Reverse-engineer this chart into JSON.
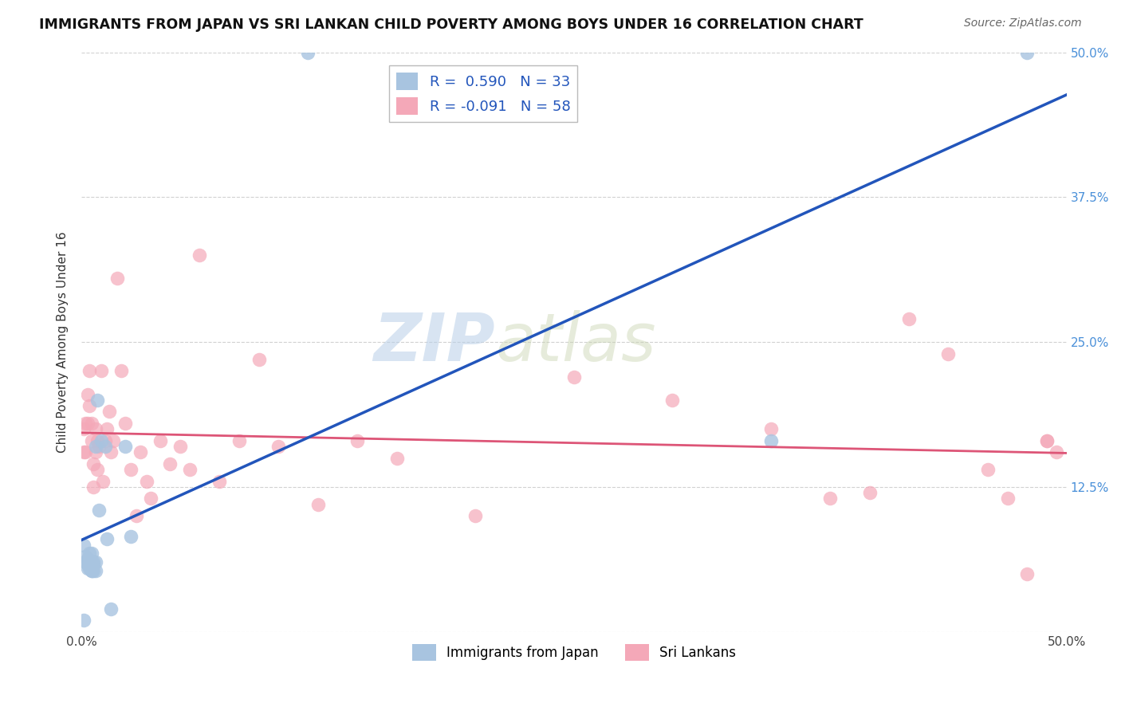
{
  "title": "IMMIGRANTS FROM JAPAN VS SRI LANKAN CHILD POVERTY AMONG BOYS UNDER 16 CORRELATION CHART",
  "source": "Source: ZipAtlas.com",
  "ylabel": "Child Poverty Among Boys Under 16",
  "xlim": [
    0.0,
    0.5
  ],
  "ylim": [
    0.0,
    0.5
  ],
  "R_japan": 0.59,
  "N_japan": 33,
  "R_srilanka": -0.091,
  "N_srilanka": 58,
  "color_japan": "#a8c4e0",
  "color_srilanka": "#f4a8b8",
  "line_color_japan": "#2255bb",
  "line_color_srilanka": "#dd5577",
  "background_color": "#ffffff",
  "grid_color": "#cccccc",
  "japan_x": [
    0.001,
    0.002,
    0.002,
    0.003,
    0.003,
    0.003,
    0.004,
    0.004,
    0.004,
    0.004,
    0.005,
    0.005,
    0.005,
    0.005,
    0.005,
    0.006,
    0.006,
    0.006,
    0.007,
    0.007,
    0.007,
    0.008,
    0.009,
    0.01,
    0.012,
    0.013,
    0.015,
    0.022,
    0.025,
    0.115,
    0.35,
    0.48,
    0.001
  ],
  "japan_y": [
    0.075,
    0.06,
    0.065,
    0.058,
    0.055,
    0.063,
    0.055,
    0.06,
    0.058,
    0.068,
    0.053,
    0.058,
    0.06,
    0.053,
    0.068,
    0.053,
    0.058,
    0.06,
    0.053,
    0.06,
    0.16,
    0.2,
    0.105,
    0.165,
    0.16,
    0.08,
    0.02,
    0.16,
    0.082,
    0.5,
    0.165,
    0.5,
    0.01
  ],
  "srilanka_x": [
    0.001,
    0.001,
    0.002,
    0.002,
    0.003,
    0.003,
    0.004,
    0.004,
    0.005,
    0.005,
    0.006,
    0.006,
    0.007,
    0.007,
    0.008,
    0.008,
    0.009,
    0.01,
    0.011,
    0.012,
    0.013,
    0.014,
    0.015,
    0.016,
    0.018,
    0.02,
    0.022,
    0.025,
    0.028,
    0.03,
    0.033,
    0.035,
    0.04,
    0.045,
    0.05,
    0.055,
    0.06,
    0.07,
    0.08,
    0.09,
    0.1,
    0.12,
    0.14,
    0.16,
    0.2,
    0.25,
    0.3,
    0.35,
    0.38,
    0.4,
    0.42,
    0.44,
    0.46,
    0.47,
    0.48,
    0.49,
    0.49,
    0.495
  ],
  "srilanka_y": [
    0.175,
    0.155,
    0.18,
    0.155,
    0.205,
    0.18,
    0.225,
    0.195,
    0.18,
    0.165,
    0.145,
    0.125,
    0.175,
    0.155,
    0.165,
    0.14,
    0.16,
    0.225,
    0.13,
    0.165,
    0.175,
    0.19,
    0.155,
    0.165,
    0.305,
    0.225,
    0.18,
    0.14,
    0.1,
    0.155,
    0.13,
    0.115,
    0.165,
    0.145,
    0.16,
    0.14,
    0.325,
    0.13,
    0.165,
    0.235,
    0.16,
    0.11,
    0.165,
    0.15,
    0.1,
    0.22,
    0.2,
    0.175,
    0.115,
    0.12,
    0.27,
    0.24,
    0.14,
    0.115,
    0.05,
    0.165,
    0.165,
    0.155
  ],
  "legend_japan_label": "R =  0.590   N = 33",
  "legend_srilanka_label": "R = -0.091   N = 58",
  "bottom_legend_japan": "Immigrants from Japan",
  "bottom_legend_srilanka": "Sri Lankans",
  "watermark_zip": "ZIP",
  "watermark_atlas": "atlas",
  "xtick_positions": [
    0.0,
    0.1,
    0.2,
    0.3,
    0.4,
    0.5
  ],
  "xtick_labels": [
    "0.0%",
    "",
    "",
    "",
    "",
    "50.0%"
  ],
  "ytick_positions": [
    0.0,
    0.125,
    0.25,
    0.375,
    0.5
  ],
  "ytick_labels_right": [
    "",
    "12.5%",
    "25.0%",
    "37.5%",
    "50.0%"
  ]
}
